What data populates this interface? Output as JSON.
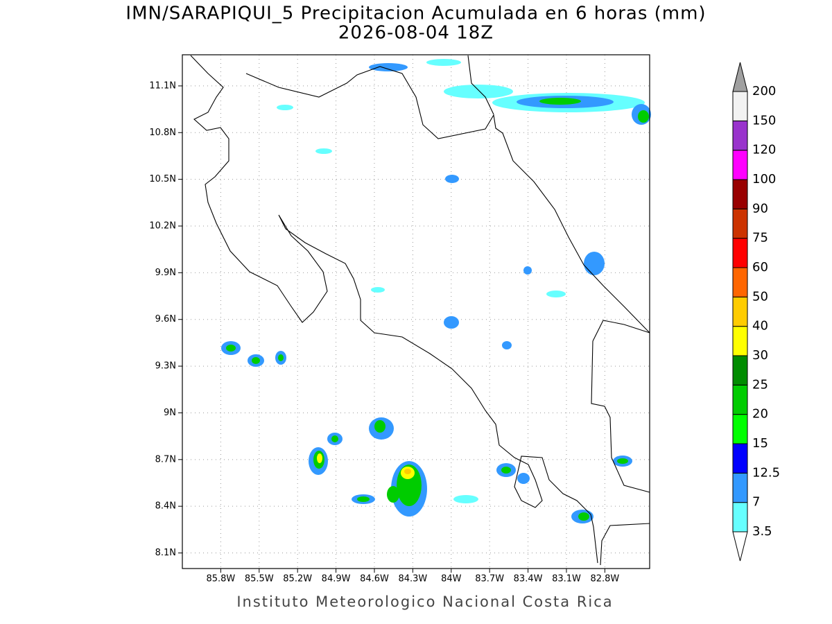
{
  "title": "IMN/SARAPIQUI_5 Precipitacion Acumulada en 6 horas (mm)",
  "subtitle": "2026-08-04 18Z",
  "footer": "Instituto Meteorologico Nacional Costa Rica",
  "map": {
    "xlim": [
      -86.1,
      -82.45
    ],
    "ylim": [
      8.0,
      11.3
    ],
    "grid": true,
    "lon_ticks": [
      {
        "value": -85.8,
        "label": "85.8W"
      },
      {
        "value": -85.5,
        "label": "85.5W"
      },
      {
        "value": -85.2,
        "label": "85.2W"
      },
      {
        "value": -84.9,
        "label": "84.9W"
      },
      {
        "value": -84.6,
        "label": "84.6W"
      },
      {
        "value": -84.3,
        "label": "84.3W"
      },
      {
        "value": -84.0,
        "label": "84W"
      },
      {
        "value": -83.7,
        "label": "83.7W"
      },
      {
        "value": -83.4,
        "label": "83.4W"
      },
      {
        "value": -83.1,
        "label": "83.1W"
      },
      {
        "value": -82.8,
        "label": "82.8W"
      }
    ],
    "lat_ticks": [
      {
        "value": 8.1,
        "label": "8.1N"
      },
      {
        "value": 8.4,
        "label": "8.4N"
      },
      {
        "value": 8.7,
        "label": "8.7N"
      },
      {
        "value": 9.0,
        "label": "9N"
      },
      {
        "value": 9.3,
        "label": "9.3N"
      },
      {
        "value": 9.6,
        "label": "9.6N"
      },
      {
        "value": 9.9,
        "label": "9.9N"
      },
      {
        "value": 10.2,
        "label": "10.2N"
      },
      {
        "value": 10.5,
        "label": "10.5N"
      },
      {
        "value": 10.8,
        "label": "10.8N"
      },
      {
        "value": 11.1,
        "label": "11.1N"
      }
    ]
  },
  "colorbar": {
    "levels": [
      3.5,
      7,
      12.5,
      15,
      20,
      25,
      30,
      40,
      50,
      60,
      75,
      90,
      100,
      120,
      150,
      200
    ],
    "colors": [
      "#66ffff",
      "#3399ff",
      "#0000ff",
      "#00ff00",
      "#00cc00",
      "#008c00",
      "#ffff00",
      "#ffcc00",
      "#ff6600",
      "#ff0000",
      "#cc3300",
      "#990000",
      "#ff00ff",
      "#9933cc",
      "#f2f2f2"
    ],
    "under_color": "#ffffff",
    "over_color": "#a0a0a0"
  }
}
